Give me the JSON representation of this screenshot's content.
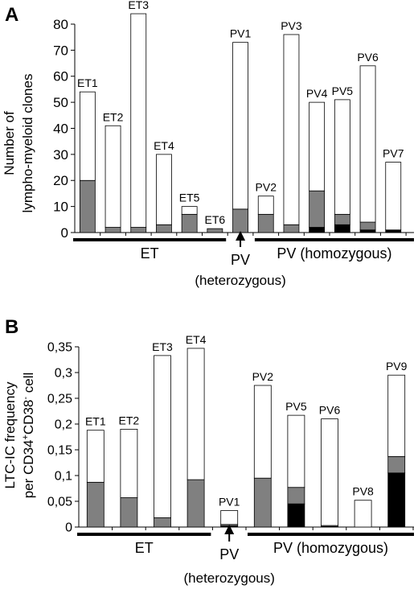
{
  "colors": {
    "white": "#ffffff",
    "gray": "#808080",
    "black": "#000000",
    "axis": "#000000"
  },
  "chart_data": [
    {
      "type": "bar",
      "stacked": true,
      "panel_label": "A",
      "ylabel_lines": [
        "Number of",
        "lympho-myeloid clones"
      ],
      "ylim": [
        0,
        80
      ],
      "yticks": [
        "0",
        "10",
        "20",
        "30",
        "40",
        "50",
        "60",
        "70",
        "80"
      ],
      "categories": [
        "ET1",
        "ET2",
        "ET3",
        "ET4",
        "ET5",
        "ET6",
        "PV1",
        "PV2",
        "PV3",
        "PV4",
        "PV5",
        "PV6",
        "PV7"
      ],
      "series": [
        {
          "color": "black",
          "values": [
            0,
            0,
            0,
            0,
            0,
            0,
            0,
            0,
            0,
            2,
            3,
            1,
            1
          ]
        },
        {
          "color": "gray",
          "values": [
            20,
            2,
            2,
            3,
            7,
            1.5,
            9,
            7,
            3,
            14,
            4,
            3,
            0
          ]
        },
        {
          "color": "white",
          "values": [
            34,
            39,
            82,
            27,
            3,
            0,
            64,
            7,
            73,
            34,
            44,
            60,
            26
          ]
        }
      ],
      "groups": [
        {
          "label": "ET",
          "from": "ET1",
          "to": "ET6"
        },
        {
          "label": "PV",
          "sublabel": "(heterozygous)",
          "from": "PV1",
          "to": "PV1",
          "arrow": true
        },
        {
          "label": "PV (homozygous)",
          "from": "PV2",
          "to": "PV7"
        }
      ]
    },
    {
      "type": "bar",
      "stacked": true,
      "panel_label": "B",
      "ylabel_lines": [
        "LTC-IC frequency",
        "per CD34+CD38- cell"
      ],
      "ylim": [
        0,
        0.35
      ],
      "yticks": [
        "0",
        "0,05",
        "0,1",
        "0,15",
        "0,2",
        "0,25",
        "0,3",
        "0,35"
      ],
      "categories": [
        "ET1",
        "ET2",
        "ET3",
        "ET4",
        "PV1",
        "PV2",
        "PV5",
        "PV6",
        "PV8",
        "PV9"
      ],
      "series": [
        {
          "color": "black",
          "values": [
            0,
            0,
            0,
            0,
            0.002,
            0,
            0.045,
            0.001,
            0,
            0.105
          ]
        },
        {
          "color": "gray",
          "values": [
            0.087,
            0.057,
            0.018,
            0.092,
            0.003,
            0.095,
            0.032,
            0.002,
            0,
            0.032
          ]
        },
        {
          "color": "white",
          "values": [
            0.101,
            0.133,
            0.315,
            0.255,
            0.027,
            0.18,
            0.14,
            0.207,
            0.052,
            0.158
          ]
        }
      ],
      "groups": [
        {
          "label": "ET",
          "from": "ET1",
          "to": "ET4"
        },
        {
          "label": "PV",
          "sublabel": "(heterozygous)",
          "from": "PV1",
          "to": "PV1",
          "arrow": true
        },
        {
          "label": "PV (homozygous)",
          "from": "PV2",
          "to": "PV9"
        }
      ]
    }
  ]
}
